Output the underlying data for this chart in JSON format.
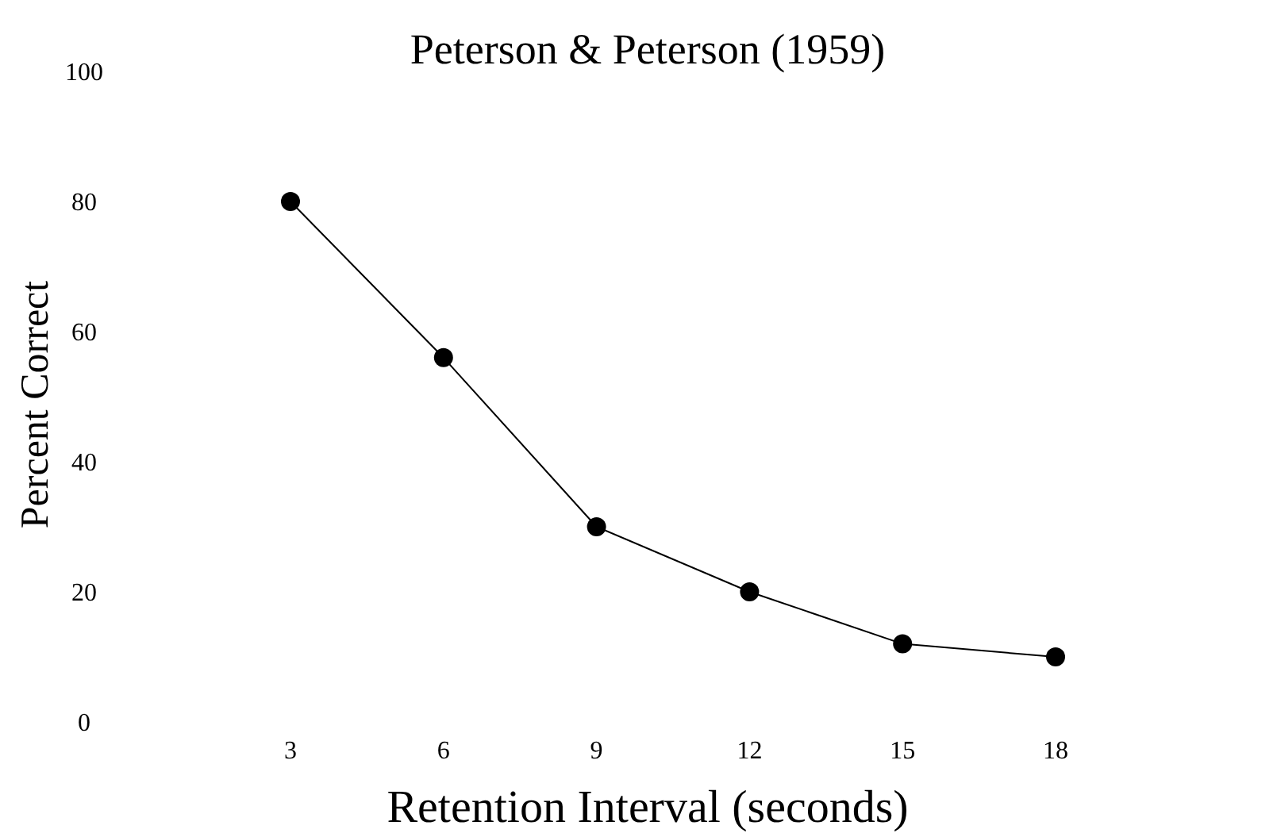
{
  "chart_data": {
    "type": "line",
    "title": "Peterson & Peterson (1959)",
    "xlabel": "Retention Interval (seconds)",
    "ylabel": "Percent Correct",
    "x": [
      3,
      6,
      9,
      12,
      15,
      18
    ],
    "series": [
      {
        "color": "#000000",
        "values": [
          80,
          56,
          30,
          20,
          12,
          10
        ]
      }
    ],
    "xlim": [
      3,
      18
    ],
    "xticks": [
      3,
      6,
      9,
      12,
      15,
      18
    ],
    "ylim": [
      0,
      100
    ],
    "yticks": [
      0,
      20,
      40,
      60,
      80,
      100
    ],
    "marker": "circle",
    "line_style": "solid"
  }
}
